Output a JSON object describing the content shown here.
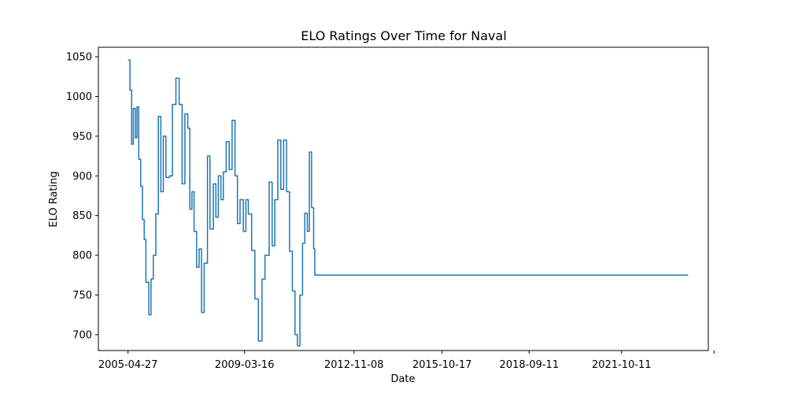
{
  "chart_data": {
    "type": "line",
    "title": "ELO Ratings Over Time for Naval",
    "xlabel": "Date",
    "ylabel": "ELO Rating",
    "x_ticks": [
      "2005-04-27",
      "2009-03-16",
      "2012-11-08",
      "2015-10-17",
      "2018-09-11",
      "2021-10-11",
      ""
    ],
    "y_ticks": [
      "700",
      "750",
      "800",
      "850",
      "900",
      "950",
      "1000",
      "1050"
    ],
    "xlim": [
      "2004-05-01",
      "2024-09-01"
    ],
    "ylim": [
      680,
      1062
    ],
    "grid": false,
    "series_color": "#1f77b4",
    "series": [
      {
        "name": "",
        "points": [
          [
            "2005-04-27",
            1046
          ],
          [
            "2005-05-20",
            1008
          ],
          [
            "2005-06-10",
            940
          ],
          [
            "2005-07-01",
            985
          ],
          [
            "2005-07-25",
            948
          ],
          [
            "2005-08-15",
            987
          ],
          [
            "2005-09-05",
            921
          ],
          [
            "2005-09-28",
            887
          ],
          [
            "2005-10-20",
            845
          ],
          [
            "2005-11-10",
            820
          ],
          [
            "2005-12-01",
            766
          ],
          [
            "2006-01-05",
            725
          ],
          [
            "2006-02-01",
            770
          ],
          [
            "2006-03-01",
            800
          ],
          [
            "2006-04-01",
            852
          ],
          [
            "2006-05-01",
            975
          ],
          [
            "2006-06-01",
            880
          ],
          [
            "2006-07-01",
            950
          ],
          [
            "2006-08-01",
            898
          ],
          [
            "2006-09-15",
            900
          ],
          [
            "2006-10-20",
            990
          ],
          [
            "2006-12-01",
            1023
          ],
          [
            "2007-01-10",
            990
          ],
          [
            "2007-02-15",
            890
          ],
          [
            "2007-03-20",
            978
          ],
          [
            "2007-04-25",
            960
          ],
          [
            "2007-05-20",
            858
          ],
          [
            "2007-06-15",
            880
          ],
          [
            "2007-07-10",
            830
          ],
          [
            "2007-08-10",
            785
          ],
          [
            "2007-09-10",
            808
          ],
          [
            "2007-10-10",
            728
          ],
          [
            "2007-11-10",
            790
          ],
          [
            "2007-12-20",
            925
          ],
          [
            "2008-01-20",
            833
          ],
          [
            "2008-03-01",
            890
          ],
          [
            "2008-04-01",
            848
          ],
          [
            "2008-05-01",
            900
          ],
          [
            "2008-06-01",
            870
          ],
          [
            "2008-07-01",
            905
          ],
          [
            "2008-08-05",
            943
          ],
          [
            "2008-09-10",
            908
          ],
          [
            "2008-10-15",
            970
          ],
          [
            "2008-11-20",
            900
          ],
          [
            "2008-12-20",
            840
          ],
          [
            "2009-01-20",
            870
          ],
          [
            "2009-03-01",
            830
          ],
          [
            "2009-04-01",
            870
          ],
          [
            "2009-05-01",
            852
          ],
          [
            "2009-06-10",
            806
          ],
          [
            "2009-07-20",
            745
          ],
          [
            "2009-09-01",
            692
          ],
          [
            "2009-10-15",
            770
          ],
          [
            "2009-11-20",
            800
          ],
          [
            "2010-01-10",
            892
          ],
          [
            "2010-02-15",
            812
          ],
          [
            "2010-03-20",
            870
          ],
          [
            "2010-04-25",
            945
          ],
          [
            "2010-06-01",
            883
          ],
          [
            "2010-07-05",
            945
          ],
          [
            "2010-08-10",
            880
          ],
          [
            "2010-09-15",
            805
          ],
          [
            "2010-10-20",
            755
          ],
          [
            "2010-11-20",
            700
          ],
          [
            "2010-12-20",
            686
          ],
          [
            "2011-01-20",
            750
          ],
          [
            "2011-02-20",
            815
          ],
          [
            "2011-03-20",
            853
          ],
          [
            "2011-04-20",
            830
          ],
          [
            "2011-05-15",
            930
          ],
          [
            "2011-06-10",
            860
          ],
          [
            "2011-07-05",
            808
          ],
          [
            "2011-07-20",
            775
          ],
          [
            "2024-01-01",
            775
          ]
        ]
      }
    ]
  }
}
